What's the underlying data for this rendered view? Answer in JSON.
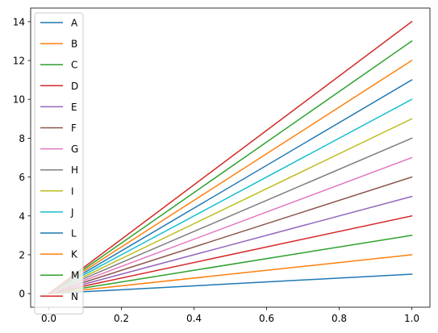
{
  "chart_data": {
    "type": "line",
    "x": [
      0.0,
      1.0
    ],
    "xlim": [
      -0.05,
      1.05
    ],
    "ylim": [
      -0.7,
      14.7
    ],
    "xticks": [
      0.0,
      0.2,
      0.4,
      0.6,
      0.8,
      1.0
    ],
    "yticks": [
      0,
      2,
      4,
      6,
      8,
      10,
      12,
      14
    ],
    "xtick_labels": [
      "0.0",
      "0.2",
      "0.4",
      "0.6",
      "0.8",
      "1.0"
    ],
    "ytick_labels": [
      "0",
      "2",
      "4",
      "6",
      "8",
      "10",
      "12",
      "14"
    ],
    "grid": false,
    "legend_position": "top-left",
    "series": [
      {
        "name": "A",
        "values": [
          0,
          1
        ],
        "color": "#1f77b4"
      },
      {
        "name": "B",
        "values": [
          0,
          2
        ],
        "color": "#ff7f0e"
      },
      {
        "name": "C",
        "values": [
          0,
          3
        ],
        "color": "#2ca02c"
      },
      {
        "name": "D",
        "values": [
          0,
          4
        ],
        "color": "#d62728"
      },
      {
        "name": "E",
        "values": [
          0,
          5
        ],
        "color": "#9467bd"
      },
      {
        "name": "F",
        "values": [
          0,
          6
        ],
        "color": "#8c564b"
      },
      {
        "name": "G",
        "values": [
          0,
          7
        ],
        "color": "#e377c2"
      },
      {
        "name": "H",
        "values": [
          0,
          8
        ],
        "color": "#7f7f7f"
      },
      {
        "name": "I",
        "values": [
          0,
          9
        ],
        "color": "#bcbd22"
      },
      {
        "name": "J",
        "values": [
          0,
          10
        ],
        "color": "#17becf"
      },
      {
        "name": "L",
        "values": [
          0,
          11
        ],
        "color": "#1f77b4"
      },
      {
        "name": "K",
        "values": [
          0,
          12
        ],
        "color": "#ff7f0e"
      },
      {
        "name": "M",
        "values": [
          0,
          13
        ],
        "color": "#2ca02c"
      },
      {
        "name": "N",
        "values": [
          0,
          14
        ],
        "color": "#d62728"
      }
    ]
  }
}
